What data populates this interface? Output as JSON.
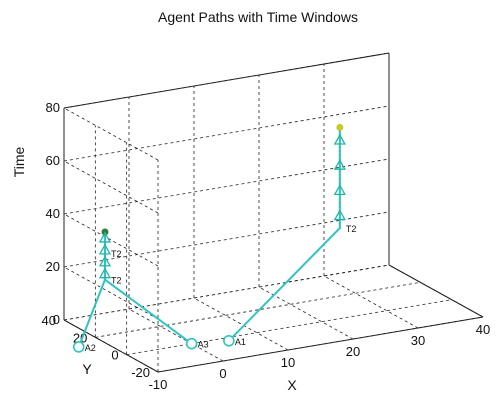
{
  "chart_data": {
    "type": "line",
    "title": "Agent Paths with Time Windows",
    "xlabel": "X",
    "ylabel": "Y",
    "zlabel": "Time",
    "xlim": [
      -10,
      40
    ],
    "ylim": [
      -20,
      40
    ],
    "zlim": [
      0,
      80
    ],
    "xticks": [
      -10,
      0,
      10,
      20,
      30,
      40
    ],
    "yticks": [
      -20,
      0,
      20,
      40
    ],
    "zticks": [
      0,
      20,
      40,
      60,
      80
    ],
    "grid": true,
    "colors": {
      "path": "#2ec4c4",
      "marker": "#21b5a8",
      "window_dark": "#2f7d3a",
      "window_yellow": "#c8c828",
      "grid": "#222222"
    },
    "series": [
      {
        "path": [
          {
            "x": 5,
            "y": -3,
            "t": 0
          },
          {
            "x": 24,
            "y": 5,
            "t": 32
          },
          {
            "x": 24,
            "y": 5,
            "t": 70
          }
        ],
        "start_label": "A1",
        "waypoint_label": "T2"
      },
      {
        "path": [
          {
            "x": -14,
            "y": 14,
            "t": 0
          },
          {
            "x": -9,
            "y": 18,
            "t": 22
          },
          {
            "x": -9,
            "y": 18,
            "t": 40
          }
        ],
        "start_label": "A2",
        "waypoint_label": "T2"
      },
      {
        "path": [
          {
            "x": 0,
            "y": 0,
            "t": 0
          },
          {
            "x": -9,
            "y": 18,
            "t": 22
          }
        ],
        "start_label": "A3",
        "waypoint_label": "T2"
      }
    ],
    "point_labels": [
      {
        "text": "A1",
        "x": 5,
        "y": -3,
        "t": 0
      },
      {
        "text": "A2",
        "x": -14,
        "y": 14,
        "t": 0
      },
      {
        "text": "A3",
        "x": 0,
        "y": 0,
        "t": 0
      },
      {
        "text": "T2",
        "x": 24,
        "y": 5,
        "t": 32
      },
      {
        "text": "T2",
        "x": -9,
        "y": 18,
        "t": 22
      },
      {
        "text": "T2",
        "x": -9,
        "y": 18,
        "t": 32
      }
    ],
    "time_windows": [
      {
        "x": 24,
        "y": 5,
        "t_start": 32,
        "t_end": 70,
        "colour": "#c8c828"
      },
      {
        "x": -9,
        "y": 18,
        "t_start": 22,
        "t_end": 40,
        "colour": "#2f7d3a"
      }
    ]
  }
}
